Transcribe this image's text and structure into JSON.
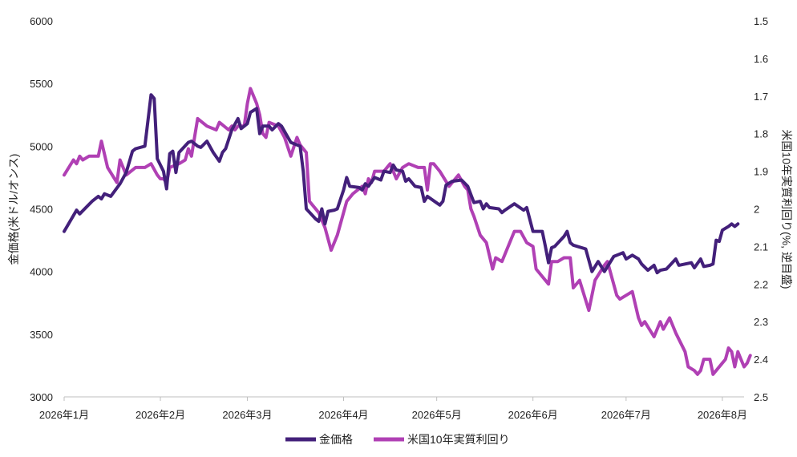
{
  "chart_data": {
    "type": "line",
    "ylabel": "金価格(米ドル/オンス)",
    "y2label": "米国10年実質利回り(%, 逆目盛)",
    "ylim": [
      3000,
      6000
    ],
    "yticks": [
      "3000",
      "3500",
      "4000",
      "4500",
      "5000",
      "5500",
      "6000"
    ],
    "y2lim": [
      1.5,
      2.5
    ],
    "y2_inverted": true,
    "y2ticks": [
      "1.5",
      "1.6",
      "1.7",
      "1.8",
      "1.9",
      "2",
      "2.1",
      "2.2",
      "2.3",
      "2.4",
      "2.5"
    ],
    "xlim": [
      "2026-01-01",
      "2026-08-08"
    ],
    "xticks": [
      {
        "date": "2026-01-01",
        "label": "2026年1月"
      },
      {
        "date": "2026-02-01",
        "label": "2026年2月"
      },
      {
        "date": "2026-03-01",
        "label": "2026年3月"
      },
      {
        "date": "2026-04-01",
        "label": "2026年4月"
      },
      {
        "date": "2026-05-01",
        "label": "2026年5月"
      },
      {
        "date": "2026-06-01",
        "label": "2026年6月"
      },
      {
        "date": "2026-07-01",
        "label": "2026年7月"
      },
      {
        "date": "2026-08-01",
        "label": "2026年8月"
      }
    ],
    "legend_position": "bottom",
    "grid": false,
    "series": [
      {
        "name": "金価格",
        "axis": "left",
        "color": "#43207a",
        "points": [
          [
            "2026-01-01",
            4320
          ],
          [
            "2026-01-05",
            4490
          ],
          [
            "2026-01-06",
            4460
          ],
          [
            "2026-01-10",
            4560
          ],
          [
            "2026-01-12",
            4600
          ],
          [
            "2026-01-13",
            4580
          ],
          [
            "2026-01-14",
            4620
          ],
          [
            "2026-01-16",
            4600
          ],
          [
            "2026-01-19",
            4700
          ],
          [
            "2026-01-21",
            4790
          ],
          [
            "2026-01-23",
            4960
          ],
          [
            "2026-01-24",
            4980
          ],
          [
            "2026-01-27",
            5000
          ],
          [
            "2026-01-29",
            5410
          ],
          [
            "2026-01-30",
            5380
          ],
          [
            "2026-01-31",
            4900
          ],
          [
            "2026-02-02",
            4800
          ],
          [
            "2026-02-03",
            4660
          ],
          [
            "2026-02-04",
            4940
          ],
          [
            "2026-02-05",
            4960
          ],
          [
            "2026-02-06",
            4790
          ],
          [
            "2026-02-07",
            4950
          ],
          [
            "2026-02-10",
            5030
          ],
          [
            "2026-02-11",
            5040
          ],
          [
            "2026-02-13",
            5000
          ],
          [
            "2026-02-14",
            4990
          ],
          [
            "2026-02-16",
            5040
          ],
          [
            "2026-02-18",
            4950
          ],
          [
            "2026-02-20",
            4880
          ],
          [
            "2026-02-21",
            4950
          ],
          [
            "2026-02-22",
            4980
          ],
          [
            "2026-02-24",
            5130
          ],
          [
            "2026-02-26",
            5220
          ],
          [
            "2026-02-27",
            5140
          ],
          [
            "2026-03-01",
            5180
          ],
          [
            "2026-03-02",
            5270
          ],
          [
            "2026-03-04",
            5300
          ],
          [
            "2026-03-05",
            5100
          ],
          [
            "2026-03-06",
            5160
          ],
          [
            "2026-03-08",
            5160
          ],
          [
            "2026-03-09",
            5130
          ],
          [
            "2026-03-11",
            5180
          ],
          [
            "2026-03-12",
            5160
          ],
          [
            "2026-03-15",
            5030
          ],
          [
            "2026-03-18",
            5000
          ],
          [
            "2026-03-19",
            4800
          ],
          [
            "2026-03-20",
            4500
          ],
          [
            "2026-03-23",
            4420
          ],
          [
            "2026-03-24",
            4400
          ],
          [
            "2026-03-25",
            4500
          ],
          [
            "2026-03-26",
            4380
          ],
          [
            "2026-03-27",
            4480
          ],
          [
            "2026-03-29",
            4490
          ],
          [
            "2026-03-30",
            4500
          ],
          [
            "2026-04-01",
            4650
          ],
          [
            "2026-04-02",
            4750
          ],
          [
            "2026-04-03",
            4680
          ],
          [
            "2026-04-06",
            4670
          ],
          [
            "2026-04-07",
            4650
          ],
          [
            "2026-04-08",
            4700
          ],
          [
            "2026-04-09",
            4680
          ],
          [
            "2026-04-11",
            4750
          ],
          [
            "2026-04-13",
            4730
          ],
          [
            "2026-04-14",
            4800
          ],
          [
            "2026-04-16",
            4790
          ],
          [
            "2026-04-17",
            4850
          ],
          [
            "2026-04-18",
            4810
          ],
          [
            "2026-04-20",
            4800
          ],
          [
            "2026-04-21",
            4720
          ],
          [
            "2026-04-22",
            4740
          ],
          [
            "2026-04-24",
            4680
          ],
          [
            "2026-04-26",
            4670
          ],
          [
            "2026-04-27",
            4560
          ],
          [
            "2026-04-28",
            4600
          ],
          [
            "2026-05-02",
            4530
          ],
          [
            "2026-05-03",
            4560
          ],
          [
            "2026-05-04",
            4690
          ],
          [
            "2026-05-06",
            4720
          ],
          [
            "2026-05-09",
            4730
          ],
          [
            "2026-05-11",
            4680
          ],
          [
            "2026-05-13",
            4550
          ],
          [
            "2026-05-15",
            4560
          ],
          [
            "2026-05-16",
            4500
          ],
          [
            "2026-05-17",
            4540
          ],
          [
            "2026-05-18",
            4510
          ],
          [
            "2026-05-21",
            4500
          ],
          [
            "2026-05-22",
            4470
          ],
          [
            "2026-05-23",
            4490
          ],
          [
            "2026-05-26",
            4540
          ],
          [
            "2026-05-29",
            4490
          ],
          [
            "2026-05-30",
            4510
          ],
          [
            "2026-06-01",
            4320
          ],
          [
            "2026-06-04",
            4320
          ],
          [
            "2026-06-05",
            4200
          ],
          [
            "2026-06-06",
            4070
          ],
          [
            "2026-06-07",
            4190
          ],
          [
            "2026-06-08",
            4200
          ],
          [
            "2026-06-11",
            4280
          ],
          [
            "2026-06-12",
            4320
          ],
          [
            "2026-06-13",
            4230
          ],
          [
            "2026-06-14",
            4210
          ],
          [
            "2026-06-18",
            4180
          ],
          [
            "2026-06-20",
            4000
          ],
          [
            "2026-06-22",
            4080
          ],
          [
            "2026-06-24",
            4000
          ],
          [
            "2026-06-27",
            4120
          ],
          [
            "2026-06-29",
            4140
          ],
          [
            "2026-06-30",
            4150
          ],
          [
            "2026-07-01",
            4100
          ],
          [
            "2026-07-03",
            4130
          ],
          [
            "2026-07-05",
            4100
          ],
          [
            "2026-07-06",
            4060
          ],
          [
            "2026-07-08",
            4010
          ],
          [
            "2026-07-10",
            4050
          ],
          [
            "2026-07-11",
            3990
          ],
          [
            "2026-07-12",
            4010
          ],
          [
            "2026-07-14",
            4020
          ],
          [
            "2026-07-17",
            4100
          ],
          [
            "2026-07-18",
            4050
          ],
          [
            "2026-07-20",
            4060
          ],
          [
            "2026-07-22",
            4070
          ],
          [
            "2026-07-23",
            4030
          ],
          [
            "2026-07-25",
            4100
          ],
          [
            "2026-07-26",
            4040
          ],
          [
            "2026-07-28",
            4050
          ],
          [
            "2026-07-29",
            4060
          ],
          [
            "2026-07-30",
            4250
          ],
          [
            "2026-07-31",
            4240
          ],
          [
            "2026-08-01",
            4330
          ],
          [
            "2026-08-03",
            4360
          ],
          [
            "2026-08-04",
            4380
          ],
          [
            "2026-08-05",
            4360
          ],
          [
            "2026-08-06",
            4380
          ]
        ]
      },
      {
        "name": "米国10年実質利回り",
        "axis": "right",
        "color": "#b040b4",
        "points": [
          [
            "2026-01-01",
            1.91
          ],
          [
            "2026-01-04",
            1.87
          ],
          [
            "2026-01-05",
            1.88
          ],
          [
            "2026-01-06",
            1.86
          ],
          [
            "2026-01-07",
            1.87
          ],
          [
            "2026-01-09",
            1.86
          ],
          [
            "2026-01-12",
            1.86
          ],
          [
            "2026-01-13",
            1.82
          ],
          [
            "2026-01-15",
            1.89
          ],
          [
            "2026-01-18",
            1.93
          ],
          [
            "2026-01-19",
            1.87
          ],
          [
            "2026-01-21",
            1.91
          ],
          [
            "2026-01-24",
            1.89
          ],
          [
            "2026-01-27",
            1.89
          ],
          [
            "2026-01-29",
            1.88
          ],
          [
            "2026-01-31",
            1.91
          ],
          [
            "2026-02-01",
            1.92
          ],
          [
            "2026-02-02",
            1.92
          ],
          [
            "2026-02-03",
            1.93
          ],
          [
            "2026-02-04",
            1.89
          ],
          [
            "2026-02-07",
            1.88
          ],
          [
            "2026-02-09",
            1.87
          ],
          [
            "2026-02-10",
            1.84
          ],
          [
            "2026-02-11",
            1.86
          ],
          [
            "2026-02-12",
            1.81
          ],
          [
            "2026-02-13",
            1.76
          ],
          [
            "2026-02-16",
            1.78
          ],
          [
            "2026-02-19",
            1.79
          ],
          [
            "2026-02-20",
            1.77
          ],
          [
            "2026-02-23",
            1.79
          ],
          [
            "2026-02-24",
            1.78
          ],
          [
            "2026-02-25",
            1.79
          ],
          [
            "2026-02-26",
            1.78
          ],
          [
            "2026-02-28",
            1.78
          ],
          [
            "2026-03-01",
            1.72
          ],
          [
            "2026-03-02",
            1.68
          ],
          [
            "2026-03-04",
            1.72
          ],
          [
            "2026-03-05",
            1.75
          ],
          [
            "2026-03-06",
            1.8
          ],
          [
            "2026-03-07",
            1.81
          ],
          [
            "2026-03-08",
            1.77
          ],
          [
            "2026-03-11",
            1.78
          ],
          [
            "2026-03-13",
            1.81
          ],
          [
            "2026-03-15",
            1.86
          ],
          [
            "2026-03-17",
            1.81
          ],
          [
            "2026-03-18",
            1.83
          ],
          [
            "2026-03-20",
            1.85
          ],
          [
            "2026-03-21",
            1.98
          ],
          [
            "2026-03-24",
            2.01
          ],
          [
            "2026-03-26",
            2.05
          ],
          [
            "2026-03-28",
            2.11
          ],
          [
            "2026-03-30",
            2.07
          ],
          [
            "2026-04-01",
            2.01
          ],
          [
            "2026-04-02",
            1.98
          ],
          [
            "2026-04-04",
            1.96
          ],
          [
            "2026-04-07",
            1.94
          ],
          [
            "2026-04-08",
            1.96
          ],
          [
            "2026-04-09",
            1.92
          ],
          [
            "2026-04-10",
            1.93
          ],
          [
            "2026-04-11",
            1.9
          ],
          [
            "2026-04-14",
            1.9
          ],
          [
            "2026-04-16",
            1.88
          ],
          [
            "2026-04-18",
            1.92
          ],
          [
            "2026-04-20",
            1.89
          ],
          [
            "2026-04-22",
            1.88
          ],
          [
            "2026-04-25",
            1.89
          ],
          [
            "2026-04-27",
            1.89
          ],
          [
            "2026-04-28",
            1.95
          ],
          [
            "2026-04-29",
            1.88
          ],
          [
            "2026-04-30",
            1.88
          ],
          [
            "2026-05-02",
            1.9
          ],
          [
            "2026-05-05",
            1.94
          ],
          [
            "2026-05-08",
            1.91
          ],
          [
            "2026-05-10",
            1.94
          ],
          [
            "2026-05-11",
            1.95
          ],
          [
            "2026-05-12",
            2.0
          ],
          [
            "2026-05-13",
            2.02
          ],
          [
            "2026-05-15",
            2.07
          ],
          [
            "2026-05-17",
            2.09
          ],
          [
            "2026-05-19",
            2.16
          ],
          [
            "2026-05-20",
            2.13
          ],
          [
            "2026-05-22",
            2.14
          ],
          [
            "2026-05-25",
            2.08
          ],
          [
            "2026-05-26",
            2.06
          ],
          [
            "2026-05-28",
            2.06
          ],
          [
            "2026-05-30",
            2.09
          ],
          [
            "2026-06-01",
            2.1
          ],
          [
            "2026-06-02",
            2.16
          ],
          [
            "2026-06-04",
            2.18
          ],
          [
            "2026-06-06",
            2.2
          ],
          [
            "2026-06-07",
            2.14
          ],
          [
            "2026-06-09",
            2.14
          ],
          [
            "2026-06-11",
            2.13
          ],
          [
            "2026-06-13",
            2.13
          ],
          [
            "2026-06-14",
            2.21
          ],
          [
            "2026-06-16",
            2.19
          ],
          [
            "2026-06-19",
            2.27
          ],
          [
            "2026-06-21",
            2.19
          ],
          [
            "2026-06-24",
            2.15
          ],
          [
            "2026-06-25",
            2.14
          ],
          [
            "2026-06-28",
            2.23
          ],
          [
            "2026-06-29",
            2.24
          ],
          [
            "2026-07-03",
            2.22
          ],
          [
            "2026-07-05",
            2.29
          ],
          [
            "2026-07-06",
            2.31
          ],
          [
            "2026-07-07",
            2.3
          ],
          [
            "2026-07-10",
            2.34
          ],
          [
            "2026-07-12",
            2.3
          ],
          [
            "2026-07-13",
            2.32
          ],
          [
            "2026-07-15",
            2.29
          ],
          [
            "2026-07-17",
            2.33
          ],
          [
            "2026-07-20",
            2.38
          ],
          [
            "2026-07-21",
            2.42
          ],
          [
            "2026-07-23",
            2.43
          ],
          [
            "2026-07-24",
            2.44
          ],
          [
            "2026-07-25",
            2.43
          ],
          [
            "2026-07-26",
            2.4
          ],
          [
            "2026-07-28",
            2.4
          ],
          [
            "2026-07-29",
            2.44
          ],
          [
            "2026-08-01",
            2.41
          ],
          [
            "2026-08-02",
            2.4
          ],
          [
            "2026-08-03",
            2.37
          ],
          [
            "2026-08-04",
            2.38
          ],
          [
            "2026-08-05",
            2.42
          ],
          [
            "2026-08-06",
            2.38
          ],
          [
            "2026-08-07",
            2.4
          ],
          [
            "2026-08-08",
            2.42
          ],
          [
            "2026-08-09",
            2.41
          ],
          [
            "2026-08-10",
            2.39
          ]
        ]
      }
    ]
  }
}
